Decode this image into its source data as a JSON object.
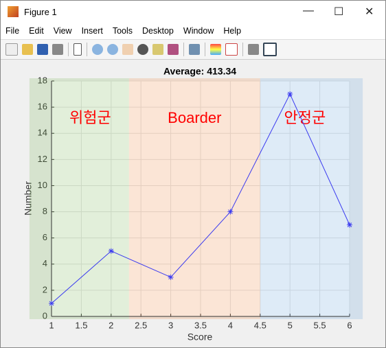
{
  "window": {
    "title": "Figure 1",
    "menu": [
      "File",
      "Edit",
      "View",
      "Insert",
      "Tools",
      "Desktop",
      "Window",
      "Help"
    ]
  },
  "chart_data": {
    "type": "line",
    "title": "Average: 413.34",
    "x_label": "Score",
    "y_label": "Number",
    "x": [
      1,
      2,
      3,
      4,
      5,
      6
    ],
    "values": [
      1,
      5,
      3,
      8,
      17,
      7
    ],
    "color": "#3a3af0",
    "marker": "*",
    "xlim": [
      1,
      6
    ],
    "xticks": [
      1,
      1.5,
      2,
      2.5,
      3,
      3.5,
      4,
      4.5,
      5,
      5.5,
      6
    ],
    "ylim": [
      0,
      18
    ],
    "yticks": [
      0,
      2,
      4,
      6,
      8,
      10,
      12,
      14,
      16,
      18
    ],
    "grid": true,
    "regions": [
      {
        "label": "위험군",
        "x": [
          0.63,
          2.3
        ],
        "color": "#70ad47"
      },
      {
        "label": "Boarder",
        "x": [
          2.3,
          4.5
        ],
        "color": "#ed7d31"
      },
      {
        "label": "안정군",
        "x": [
          4.5,
          6.22
        ],
        "color": "#5b9bd5"
      }
    ],
    "region_label_color": "#ff0000"
  }
}
